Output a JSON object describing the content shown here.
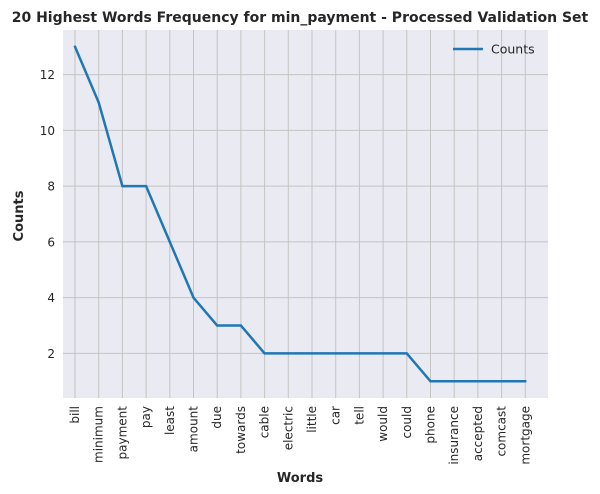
{
  "chart_data": {
    "type": "line",
    "title": "20 Highest Words Frequency for min_payment - Processed Validation Set",
    "xlabel": "Words",
    "ylabel": "Counts",
    "categories": [
      "bill",
      "minimum",
      "payment",
      "pay",
      "least",
      "amount",
      "due",
      "towards",
      "cable",
      "electric",
      "little",
      "car",
      "tell",
      "would",
      "could",
      "phone",
      "insurance",
      "accepted",
      "comcast",
      "mortgage"
    ],
    "series": [
      {
        "name": "Counts",
        "values": [
          13,
          11,
          8,
          8,
          6,
          4,
          3,
          3,
          2,
          2,
          2,
          2,
          2,
          2,
          2,
          1,
          1,
          1,
          1,
          1
        ]
      }
    ],
    "yticks": [
      2,
      4,
      6,
      8,
      10,
      12
    ],
    "ylim": [
      0.4,
      13.6
    ],
    "grid": true,
    "legend_position": "top-right",
    "colors": {
      "line": "#1f77b4",
      "plot_background": "#eaeaf2",
      "grid": "#c4c4c4",
      "text": "#262626"
    }
  }
}
